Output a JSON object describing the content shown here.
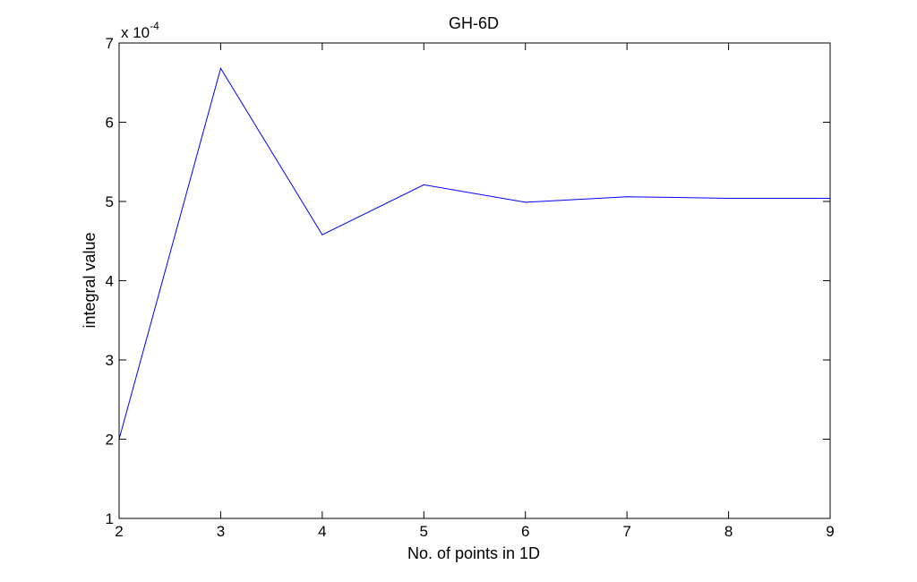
{
  "chart_data": {
    "type": "line",
    "title": "GH-6D",
    "xlabel": "No. of points in 1D",
    "ylabel": "integral value",
    "y_multiplier": "x 10",
    "y_multiplier_exponent": "-4",
    "xlim": [
      2,
      9
    ],
    "ylim": [
      1,
      7
    ],
    "xticks": [
      "2",
      "3",
      "4",
      "5",
      "6",
      "7",
      "8",
      "9"
    ],
    "yticks": [
      "1",
      "2",
      "3",
      "4",
      "5",
      "6",
      "7"
    ],
    "grid": false,
    "legend": null,
    "series": [
      {
        "color": "#0000ff",
        "x": [
          2,
          3,
          4,
          5,
          6,
          7,
          8,
          9
        ],
        "y": [
          2.0,
          6.68,
          4.58,
          5.21,
          4.99,
          5.06,
          5.04,
          5.04
        ]
      }
    ]
  }
}
